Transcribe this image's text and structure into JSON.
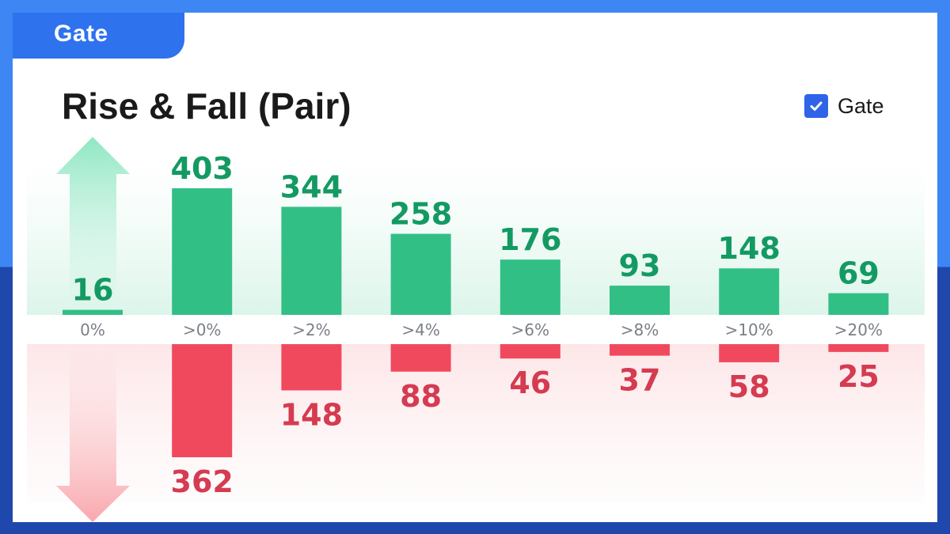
{
  "brand": {
    "logo_text": "Gate"
  },
  "legend": {
    "label": "Gate",
    "checked": true
  },
  "chart_data": {
    "type": "bar",
    "title": "Rise & Fall (Pair)",
    "categories": [
      "0%",
      ">0%",
      ">2%",
      ">4%",
      ">6%",
      ">8%",
      ">10%",
      ">20%"
    ],
    "series": [
      {
        "values": [
          16,
          403,
          344,
          258,
          176,
          93,
          148,
          69
        ]
      },
      {
        "values": [
          0,
          362,
          148,
          88,
          46,
          37,
          58,
          25
        ]
      }
    ],
    "legend_position": "top-right",
    "colors": {
      "rise": "#32bf86",
      "fall": "#f0495e",
      "rise_label": "#139a62",
      "fall_label": "#d53b51",
      "tick": "#7a7f88"
    }
  }
}
